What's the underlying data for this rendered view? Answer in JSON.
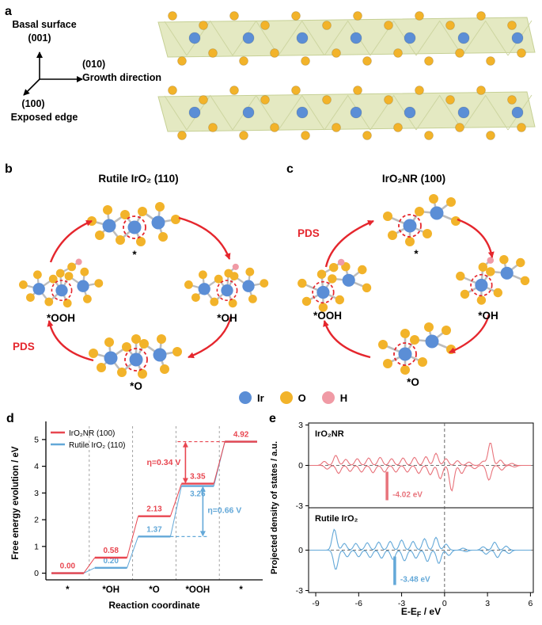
{
  "colors": {
    "red": "#e5262d"
  },
  "panels": {
    "a": {
      "label": "a",
      "basal_line1": "Basal surface",
      "basal_line2": "(001)",
      "growth_axis": "(010)",
      "growth_text": "Growth direction",
      "edge_axis": "(100)",
      "edge_text": "Exposed edge"
    },
    "b": {
      "label": "b",
      "title": "Rutile IrO₂ (110)",
      "pds": "PDS",
      "sites": {
        "star": "*",
        "oh": "*OH",
        "o": "*O",
        "ooh": "*OOH"
      }
    },
    "c": {
      "label": "c",
      "title": "IrO₂NR (100)",
      "pds": "PDS",
      "sites": {
        "star": "*",
        "oh": "*OH",
        "o": "*O",
        "ooh": "*OOH"
      }
    },
    "legend": {
      "items": [
        {
          "label": "Ir",
          "color": "#5b8ed6"
        },
        {
          "label": "O",
          "color": "#f2b32a"
        },
        {
          "label": "H",
          "color": "#f09aa5"
        }
      ]
    },
    "d": {
      "label": "d"
    },
    "e": {
      "label": "e"
    }
  },
  "chart_data": [
    {
      "panel": "d",
      "type": "step",
      "xlabel": "Reaction coordinate",
      "ylabel": "Free energy evolution / eV",
      "categories": [
        "*",
        "*OH",
        "*O",
        "*OOH",
        "*"
      ],
      "ylim": [
        0,
        5
      ],
      "yticks": [
        0,
        1,
        2,
        3,
        4,
        5
      ],
      "grid": "dashed-vertical-region-boundaries",
      "legend_position": "top-left",
      "series": [
        {
          "name": "IrO₂NR (100)",
          "color": "#e84650",
          "values": [
            0.0,
            0.58,
            2.13,
            3.35,
            4.92
          ],
          "value_labels": [
            "0.00",
            "0.58",
            "2.13",
            "3.35",
            "4.92"
          ],
          "pds_from_index": 3,
          "overpotential_label": "η=0.34 V"
        },
        {
          "name": "Rutile IrO₂ (110)",
          "color": "#63a8d8",
          "values": [
            0.0,
            0.2,
            1.37,
            3.26,
            4.92
          ],
          "value_labels": [
            "",
            "0.20",
            "1.37",
            "3.26",
            ""
          ],
          "pds_from_index": 2,
          "overpotential_label": "η=0.66 V"
        }
      ]
    },
    {
      "panel": "e",
      "type": "line",
      "xlabel": "E-E_F / eV",
      "xlabel_parts": {
        "main": "E-E",
        "sub": "F",
        "unit": " / eV"
      },
      "ylabel": "Projected density of states / a.u.",
      "xlim": [
        -9.5,
        6
      ],
      "xticks": [
        -9,
        -6,
        -3,
        0,
        3,
        6
      ],
      "ylim": [
        -3,
        3
      ],
      "yticks": [
        3,
        0,
        -3
      ],
      "subplots": [
        {
          "name": "IrO₂NR",
          "color": "#e8737b",
          "band_center_ev": -4.02,
          "band_center_label": "-4.02 eV",
          "peaks_up": [
            [
              -8.4,
              0.3
            ],
            [
              -7.6,
              0.75
            ],
            [
              -6.9,
              0.45
            ],
            [
              -6.1,
              0.5
            ],
            [
              -5.3,
              0.55
            ],
            [
              -4.5,
              0.6
            ],
            [
              -3.7,
              0.5
            ],
            [
              -2.9,
              0.55
            ],
            [
              -2.1,
              0.6
            ],
            [
              -1.3,
              0.65
            ],
            [
              -0.6,
              0.9
            ],
            [
              0.1,
              0.5
            ],
            [
              0.9,
              0.35
            ],
            [
              1.7,
              0.25
            ],
            [
              2.7,
              0.3
            ],
            [
              3.2,
              1.7
            ],
            [
              3.9,
              0.4
            ],
            [
              4.7,
              0.15
            ]
          ],
          "peaks_down": [
            [
              -8.2,
              0.28
            ],
            [
              -7.4,
              0.6
            ],
            [
              -6.6,
              0.45
            ],
            [
              -5.8,
              0.5
            ],
            [
              -5.0,
              0.55
            ],
            [
              -4.2,
              0.5
            ],
            [
              -3.4,
              0.5
            ],
            [
              -2.6,
              0.5
            ],
            [
              -1.8,
              0.6
            ],
            [
              -1.0,
              0.7
            ],
            [
              -0.3,
              1.0
            ],
            [
              0.5,
              1.9
            ],
            [
              1.2,
              0.6
            ],
            [
              2.1,
              0.25
            ],
            [
              3.1,
              1.1
            ],
            [
              4.0,
              0.35
            ],
            [
              4.9,
              0.12
            ]
          ]
        },
        {
          "name": "Rutile IrO₂",
          "color": "#63a8d8",
          "band_center_ev": -3.48,
          "band_center_label": "-3.48 eV",
          "peaks_up": [
            [
              -7.7,
              1.55
            ],
            [
              -7.0,
              0.5
            ],
            [
              -6.2,
              0.5
            ],
            [
              -5.4,
              0.55
            ],
            [
              -4.6,
              0.6
            ],
            [
              -3.8,
              0.65
            ],
            [
              -3.0,
              0.75
            ],
            [
              -2.2,
              0.65
            ],
            [
              -1.4,
              0.85
            ],
            [
              -0.6,
              0.95
            ],
            [
              0.1,
              0.45
            ],
            [
              1.3,
              0.15
            ],
            [
              2.7,
              0.25
            ],
            [
              3.5,
              0.6
            ],
            [
              4.3,
              0.3
            ]
          ],
          "peaks_down": [
            [
              -7.6,
              1.45
            ],
            [
              -6.8,
              0.5
            ],
            [
              -6.0,
              0.5
            ],
            [
              -5.2,
              0.55
            ],
            [
              -4.4,
              0.6
            ],
            [
              -3.6,
              0.7
            ],
            [
              -2.8,
              0.8
            ],
            [
              -2.0,
              0.6
            ],
            [
              -1.2,
              0.85
            ],
            [
              -0.4,
              1.0
            ],
            [
              0.3,
              0.4
            ],
            [
              1.5,
              0.12
            ],
            [
              2.9,
              0.3
            ],
            [
              3.7,
              0.55
            ],
            [
              4.5,
              0.25
            ]
          ]
        }
      ]
    }
  ]
}
